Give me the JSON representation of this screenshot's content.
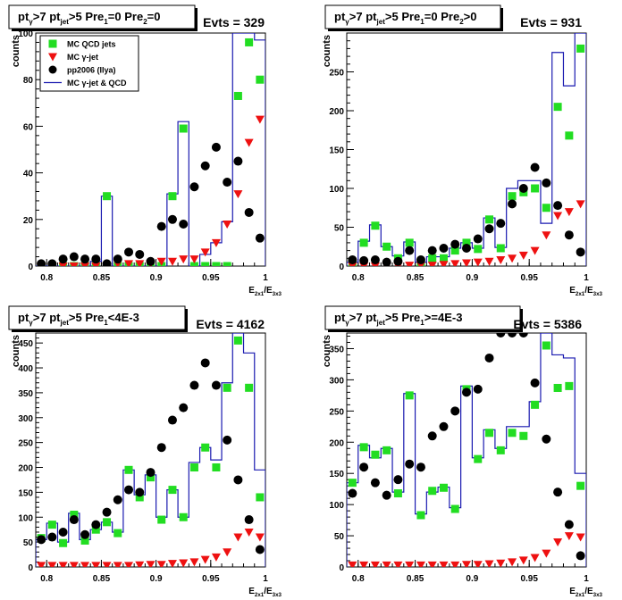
{
  "chart_data": [
    {
      "type": "histogram",
      "title": {
        "main": "pt",
        "sub1": "γ",
        "mid": ">7  pt",
        "sub2": "jet",
        "rest": ">5 Pre",
        "sub3": "1",
        "rest2": "=0 Pre",
        "sub4": "2",
        "rest3": "=0"
      },
      "evts": "Evts = 329",
      "ylabel": "counts",
      "xlabel": {
        "main": "E",
        "sub1": "2x1",
        "mid": "/E",
        "sub2": "3x3"
      },
      "xlim": [
        0.79,
        1.0
      ],
      "ylim": [
        0,
        100
      ],
      "xticks": [
        0.8,
        0.85,
        0.9,
        0.95,
        1.0
      ],
      "xtick_labels": [
        "0.8",
        "0.85",
        "0.9",
        "0.95",
        "1"
      ],
      "yticks": [
        0,
        20,
        40,
        60,
        80,
        100
      ],
      "ytick_labels": [
        "0",
        "20",
        "40",
        "60",
        "80",
        "100"
      ],
      "legend": {
        "position": "top-left",
        "entries": [
          {
            "label": "MC QCD jets",
            "marker": "square",
            "color": "#22dd22"
          },
          {
            "label": "MC γ-jet",
            "marker": "triangle-down",
            "color": "#ee1111"
          },
          {
            "label": "pp2006 (Ilya)",
            "marker": "circle",
            "color": "#000000"
          },
          {
            "label": "MC γ-jet & QCD",
            "marker": "line",
            "color": "#1a1ab0"
          }
        ]
      },
      "series": [
        {
          "name": "MC γ-jet & QCD",
          "kind": "step",
          "x": [
            0.795,
            0.805,
            0.815,
            0.825,
            0.835,
            0.845,
            0.855,
            0.865,
            0.875,
            0.885,
            0.895,
            0.905,
            0.915,
            0.925,
            0.935,
            0.945,
            0.955,
            0.965,
            0.975,
            0.985,
            0.995
          ],
          "values": [
            0,
            0,
            0,
            0,
            0,
            2,
            30,
            0,
            0,
            0,
            0,
            0,
            31,
            62,
            0,
            5,
            10,
            19,
            100,
            100,
            97
          ]
        },
        {
          "name": "MC QCD jets",
          "kind": "square",
          "x": [
            0.795,
            0.805,
            0.815,
            0.825,
            0.835,
            0.845,
            0.855,
            0.865,
            0.875,
            0.885,
            0.895,
            0.905,
            0.915,
            0.925,
            0.935,
            0.945,
            0.955,
            0.965,
            0.975,
            0.985,
            0.995
          ],
          "values": [
            0,
            0,
            0,
            0,
            0,
            0,
            30,
            0,
            0,
            0,
            0,
            0,
            30,
            59,
            0,
            0,
            0,
            0,
            73,
            96,
            80
          ]
        },
        {
          "name": "MC γ-jet",
          "kind": "triangle",
          "x": [
            0.795,
            0.805,
            0.815,
            0.825,
            0.835,
            0.845,
            0.855,
            0.865,
            0.875,
            0.885,
            0.895,
            0.905,
            0.915,
            0.925,
            0.935,
            0.945,
            0.955,
            0.965,
            0.975,
            0.985,
            0.995
          ],
          "values": [
            0,
            0,
            0,
            0,
            0,
            0,
            0,
            1,
            1,
            1,
            1,
            2,
            2,
            3,
            3,
            6,
            10,
            18,
            31,
            53,
            63
          ]
        },
        {
          "name": "pp2006 (Ilya)",
          "kind": "circle",
          "x": [
            0.795,
            0.805,
            0.815,
            0.825,
            0.835,
            0.845,
            0.855,
            0.865,
            0.875,
            0.885,
            0.895,
            0.905,
            0.915,
            0.925,
            0.935,
            0.945,
            0.955,
            0.965,
            0.975,
            0.985,
            0.995
          ],
          "values": [
            1,
            1,
            3,
            4,
            3,
            3,
            1,
            3,
            6,
            5,
            2,
            17,
            20,
            18,
            34,
            43,
            51,
            36,
            45,
            23,
            12
          ]
        }
      ]
    },
    {
      "type": "histogram",
      "title": {
        "main": "pt",
        "sub1": "γ",
        "mid": ">7  pt",
        "sub2": "jet",
        "rest": ">5 Pre",
        "sub3": "1",
        "rest2": "=0 Pre",
        "sub4": "2",
        "rest3": ">0"
      },
      "evts": "Evts = 931",
      "ylabel": "counts",
      "xlabel": {
        "main": "E",
        "sub1": "2x1",
        "mid": "/E",
        "sub2": "3x3"
      },
      "xlim": [
        0.79,
        1.0
      ],
      "ylim": [
        0,
        300
      ],
      "xticks": [
        0.8,
        0.85,
        0.9,
        0.95,
        1.0
      ],
      "xtick_labels": [
        "0.8",
        "0.85",
        "0.9",
        "0.95",
        "1"
      ],
      "yticks": [
        0,
        50,
        100,
        150,
        200,
        250
      ],
      "ytick_labels": [
        "0",
        "50",
        "100",
        "150",
        "200",
        "250"
      ],
      "series": [
        {
          "name": "MC γ-jet & QCD",
          "kind": "step",
          "x": [
            0.795,
            0.805,
            0.815,
            0.825,
            0.835,
            0.845,
            0.855,
            0.865,
            0.875,
            0.885,
            0.895,
            0.905,
            0.915,
            0.925,
            0.935,
            0.945,
            0.955,
            0.965,
            0.975,
            0.985,
            0.995
          ],
          "values": [
            5,
            32,
            53,
            25,
            13,
            31,
            5,
            12,
            12,
            23,
            30,
            23,
            62,
            24,
            100,
            110,
            110,
            55,
            275,
            232,
            300
          ]
        },
        {
          "name": "MC QCD jets",
          "kind": "square",
          "x": [
            0.795,
            0.805,
            0.815,
            0.825,
            0.835,
            0.845,
            0.855,
            0.865,
            0.875,
            0.885,
            0.895,
            0.905,
            0.915,
            0.925,
            0.935,
            0.945,
            0.955,
            0.965,
            0.975,
            0.985,
            0.995
          ],
          "values": [
            5,
            30,
            52,
            25,
            10,
            30,
            5,
            10,
            10,
            20,
            30,
            22,
            60,
            23,
            90,
            95,
            100,
            75,
            205,
            168,
            280
          ]
        },
        {
          "name": "MC γ-jet",
          "kind": "triangle",
          "x": [
            0.795,
            0.805,
            0.815,
            0.825,
            0.835,
            0.845,
            0.855,
            0.865,
            0.875,
            0.885,
            0.895,
            0.905,
            0.915,
            0.925,
            0.935,
            0.945,
            0.955,
            0.965,
            0.975,
            0.985,
            0.995
          ],
          "values": [
            0,
            0,
            0,
            0,
            0,
            1,
            1,
            1,
            2,
            3,
            4,
            5,
            6,
            8,
            10,
            14,
            20,
            40,
            65,
            70,
            80
          ]
        },
        {
          "name": "pp2006 (Ilya)",
          "kind": "circle",
          "x": [
            0.795,
            0.805,
            0.815,
            0.825,
            0.835,
            0.845,
            0.855,
            0.865,
            0.875,
            0.885,
            0.895,
            0.905,
            0.915,
            0.925,
            0.935,
            0.945,
            0.955,
            0.965,
            0.975,
            0.985,
            0.995
          ],
          "values": [
            8,
            7,
            8,
            5,
            6,
            20,
            8,
            20,
            23,
            28,
            23,
            35,
            48,
            55,
            80,
            100,
            127,
            107,
            78,
            40,
            18
          ]
        }
      ]
    },
    {
      "type": "histogram",
      "title": {
        "main": "pt",
        "sub1": "γ",
        "mid": ">7  pt",
        "sub2": "jet",
        "rest": ">5 Pre",
        "sub3": "1",
        "rest2": "<4E-3",
        "sub4": "",
        "rest3": ""
      },
      "evts": "Evts = 4162",
      "ylabel": "counts",
      "xlabel": {
        "main": "E",
        "sub1": "2x1",
        "mid": "/E",
        "sub2": "3x3"
      },
      "xlim": [
        0.79,
        1.0
      ],
      "ylim": [
        0,
        470
      ],
      "xticks": [
        0.8,
        0.85,
        0.9,
        0.95,
        1.0
      ],
      "xtick_labels": [
        "0.8",
        "0.85",
        "0.9",
        "0.95",
        "1"
      ],
      "yticks": [
        0,
        50,
        100,
        150,
        200,
        250,
        300,
        350,
        400,
        450
      ],
      "ytick_labels": [
        "0",
        "50",
        "100",
        "150",
        "200",
        "250",
        "300",
        "350",
        "400",
        "450"
      ],
      "series": [
        {
          "name": "MC γ-jet & QCD",
          "kind": "step",
          "x": [
            0.795,
            0.805,
            0.815,
            0.825,
            0.835,
            0.845,
            0.855,
            0.865,
            0.875,
            0.885,
            0.895,
            0.905,
            0.915,
            0.925,
            0.935,
            0.945,
            0.955,
            0.965,
            0.975,
            0.985,
            0.995
          ],
          "values": [
            55,
            88,
            50,
            108,
            55,
            75,
            90,
            70,
            195,
            145,
            185,
            100,
            155,
            100,
            210,
            240,
            215,
            370,
            470,
            430,
            195
          ]
        },
        {
          "name": "MC QCD jets",
          "kind": "square",
          "x": [
            0.795,
            0.805,
            0.815,
            0.825,
            0.835,
            0.845,
            0.855,
            0.865,
            0.875,
            0.885,
            0.895,
            0.905,
            0.915,
            0.925,
            0.935,
            0.945,
            0.955,
            0.965,
            0.975,
            0.985,
            0.995
          ],
          "values": [
            58,
            85,
            48,
            105,
            53,
            75,
            90,
            68,
            195,
            140,
            180,
            95,
            155,
            100,
            200,
            240,
            200,
            360,
            455,
            360,
            140
          ]
        },
        {
          "name": "MC γ-jet",
          "kind": "triangle",
          "x": [
            0.795,
            0.805,
            0.815,
            0.825,
            0.835,
            0.845,
            0.855,
            0.865,
            0.875,
            0.885,
            0.895,
            0.905,
            0.915,
            0.925,
            0.935,
            0.945,
            0.955,
            0.965,
            0.975,
            0.985,
            0.995
          ],
          "values": [
            3,
            3,
            3,
            3,
            3,
            3,
            3,
            3,
            3,
            4,
            5,
            5,
            7,
            8,
            10,
            15,
            20,
            30,
            60,
            70,
            60
          ]
        },
        {
          "name": "pp2006 (Ilya)",
          "kind": "circle",
          "x": [
            0.795,
            0.805,
            0.815,
            0.825,
            0.835,
            0.845,
            0.855,
            0.865,
            0.875,
            0.885,
            0.895,
            0.905,
            0.915,
            0.925,
            0.935,
            0.945,
            0.955,
            0.965,
            0.975,
            0.985,
            0.995
          ],
          "values": [
            55,
            60,
            70,
            95,
            65,
            85,
            110,
            135,
            155,
            150,
            190,
            240,
            295,
            320,
            365,
            410,
            365,
            255,
            175,
            95,
            35
          ]
        }
      ]
    },
    {
      "type": "histogram",
      "title": {
        "main": "pt",
        "sub1": "γ",
        "mid": ">7  pt",
        "sub2": "jet",
        "rest": ">5 Pre",
        "sub3": "1",
        "rest2": ">=4E-3",
        "sub4": "",
        "rest3": ""
      },
      "evts": "Evts = 5386",
      "ylabel": "counts",
      "xlabel": {
        "main": "E",
        "sub1": "2x1",
        "mid": "/E",
        "sub2": "3x3"
      },
      "xlim": [
        0.79,
        1.0
      ],
      "ylim": [
        0,
        375
      ],
      "xticks": [
        0.8,
        0.85,
        0.9,
        0.95,
        1.0
      ],
      "xtick_labels": [
        "0.8",
        "0.85",
        "0.9",
        "0.95",
        "1"
      ],
      "yticks": [
        0,
        50,
        100,
        150,
        200,
        250,
        300,
        350
      ],
      "ytick_labels": [
        "0",
        "50",
        "100",
        "150",
        "200",
        "250",
        "300",
        "350"
      ],
      "series": [
        {
          "name": "MC γ-jet & QCD",
          "kind": "step",
          "x": [
            0.795,
            0.805,
            0.815,
            0.825,
            0.835,
            0.845,
            0.855,
            0.865,
            0.875,
            0.885,
            0.895,
            0.905,
            0.915,
            0.925,
            0.935,
            0.945,
            0.955,
            0.965,
            0.975,
            0.985,
            0.995
          ],
          "values": [
            135,
            195,
            175,
            190,
            120,
            278,
            85,
            120,
            128,
            95,
            290,
            175,
            220,
            190,
            225,
            225,
            265,
            375,
            340,
            335,
            150
          ]
        },
        {
          "name": "MC QCD jets",
          "kind": "square",
          "x": [
            0.795,
            0.805,
            0.815,
            0.825,
            0.835,
            0.845,
            0.855,
            0.865,
            0.875,
            0.885,
            0.895,
            0.905,
            0.915,
            0.925,
            0.935,
            0.945,
            0.955,
            0.965,
            0.975,
            0.985,
            0.995
          ],
          "values": [
            135,
            192,
            180,
            187,
            118,
            275,
            83,
            122,
            127,
            93,
            285,
            173,
            215,
            187,
            215,
            210,
            260,
            355,
            287,
            290,
            130
          ]
        },
        {
          "name": "MC γ-jet",
          "kind": "triangle",
          "x": [
            0.795,
            0.805,
            0.815,
            0.825,
            0.835,
            0.845,
            0.855,
            0.865,
            0.875,
            0.885,
            0.895,
            0.905,
            0.915,
            0.925,
            0.935,
            0.945,
            0.955,
            0.965,
            0.975,
            0.985,
            0.995
          ],
          "values": [
            3,
            3,
            3,
            3,
            3,
            3,
            3,
            3,
            3,
            3,
            4,
            4,
            5,
            6,
            8,
            11,
            15,
            22,
            40,
            50,
            48
          ]
        },
        {
          "name": "pp2006 (Ilya)",
          "kind": "circle",
          "x": [
            0.795,
            0.805,
            0.815,
            0.825,
            0.835,
            0.845,
            0.855,
            0.865,
            0.875,
            0.885,
            0.895,
            0.905,
            0.915,
            0.925,
            0.935,
            0.945,
            0.955,
            0.965,
            0.975,
            0.985,
            0.995
          ],
          "values": [
            118,
            160,
            135,
            115,
            140,
            165,
            160,
            210,
            225,
            250,
            280,
            285,
            335,
            375,
            375,
            375,
            295,
            205,
            120,
            68,
            18
          ]
        }
      ]
    }
  ]
}
